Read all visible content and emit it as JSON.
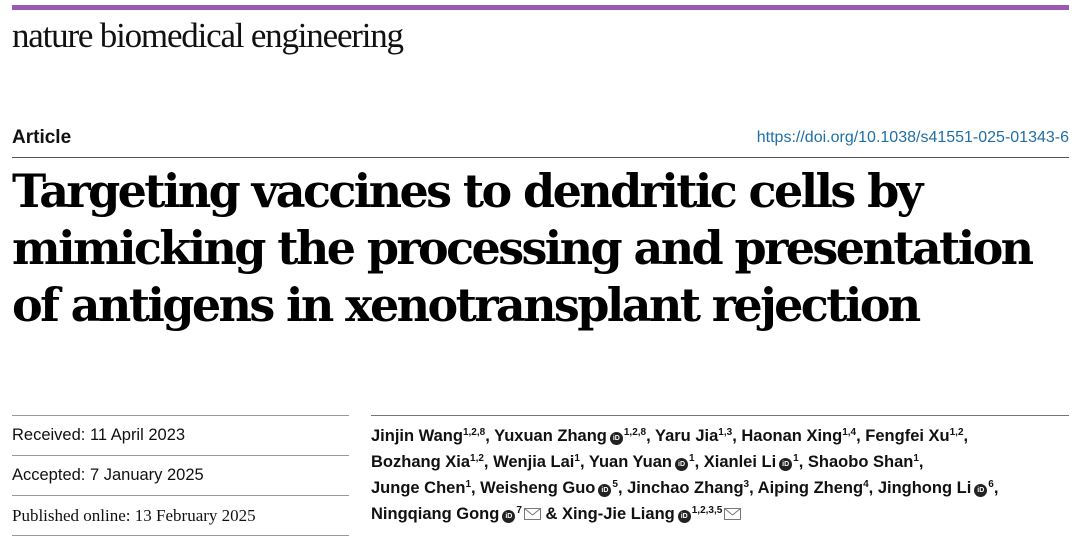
{
  "header": {
    "journal": "nature biomedical engineering",
    "accent_color": "#9b59b6"
  },
  "article": {
    "type": "Article",
    "doi": "https://doi.org/10.1038/s41551-025-01343-6",
    "title_lines": [
      "Targeting vaccines to dendritic cells by",
      "mimicking the processing and presentation",
      "of antigens in xenotransplant rejection"
    ]
  },
  "dates": {
    "received": "Received: 11 April 2023",
    "accepted": "Accepted: 7 January 2025",
    "published": "Published online: 13 February 2025"
  },
  "orcid_icon_text": "iD",
  "author_lines": [
    [
      {
        "name": "Jinjin Wang",
        "aff": "1,2,8",
        "orcid": false,
        "mail": false,
        "sep": ", "
      },
      {
        "name": "Yuxuan Zhang",
        "aff": "1,2,8",
        "orcid": true,
        "mail": false,
        "sep": ", "
      },
      {
        "name": "Yaru Jia",
        "aff": "1,3",
        "orcid": false,
        "mail": false,
        "sep": ", "
      },
      {
        "name": "Haonan Xing",
        "aff": "1,4",
        "orcid": false,
        "mail": false,
        "sep": ", "
      },
      {
        "name": "Fengfei Xu",
        "aff": "1,2",
        "orcid": false,
        "mail": false,
        "sep": ","
      }
    ],
    [
      {
        "name": "Bozhang Xia",
        "aff": "1,2",
        "orcid": false,
        "mail": false,
        "sep": ", "
      },
      {
        "name": "Wenjia Lai",
        "aff": "1",
        "orcid": false,
        "mail": false,
        "sep": ", "
      },
      {
        "name": "Yuan Yuan",
        "aff": "1",
        "orcid": true,
        "mail": false,
        "sep": ", "
      },
      {
        "name": "Xianlei Li",
        "aff": "1",
        "orcid": true,
        "mail": false,
        "sep": ", "
      },
      {
        "name": "Shaobo Shan",
        "aff": "1",
        "orcid": false,
        "mail": false,
        "sep": ","
      }
    ],
    [
      {
        "name": "Junge Chen",
        "aff": "1",
        "orcid": false,
        "mail": false,
        "sep": ", "
      },
      {
        "name": "Weisheng Guo",
        "aff": "5",
        "orcid": true,
        "mail": false,
        "sep": ", "
      },
      {
        "name": "Jinchao Zhang",
        "aff": "3",
        "orcid": false,
        "mail": false,
        "sep": ", "
      },
      {
        "name": "Aiping Zheng",
        "aff": "4",
        "orcid": false,
        "mail": false,
        "sep": ", "
      },
      {
        "name": "Jinghong Li",
        "aff": "6",
        "orcid": true,
        "mail": false,
        "sep": ","
      }
    ],
    [
      {
        "name": "Ningqiang Gong",
        "aff": "7",
        "orcid": true,
        "mail": true,
        "sep": " & "
      },
      {
        "name": "Xing-Jie Liang",
        "aff": "1,2,3,5",
        "orcid": true,
        "mail": true,
        "sep": ""
      }
    ]
  ]
}
